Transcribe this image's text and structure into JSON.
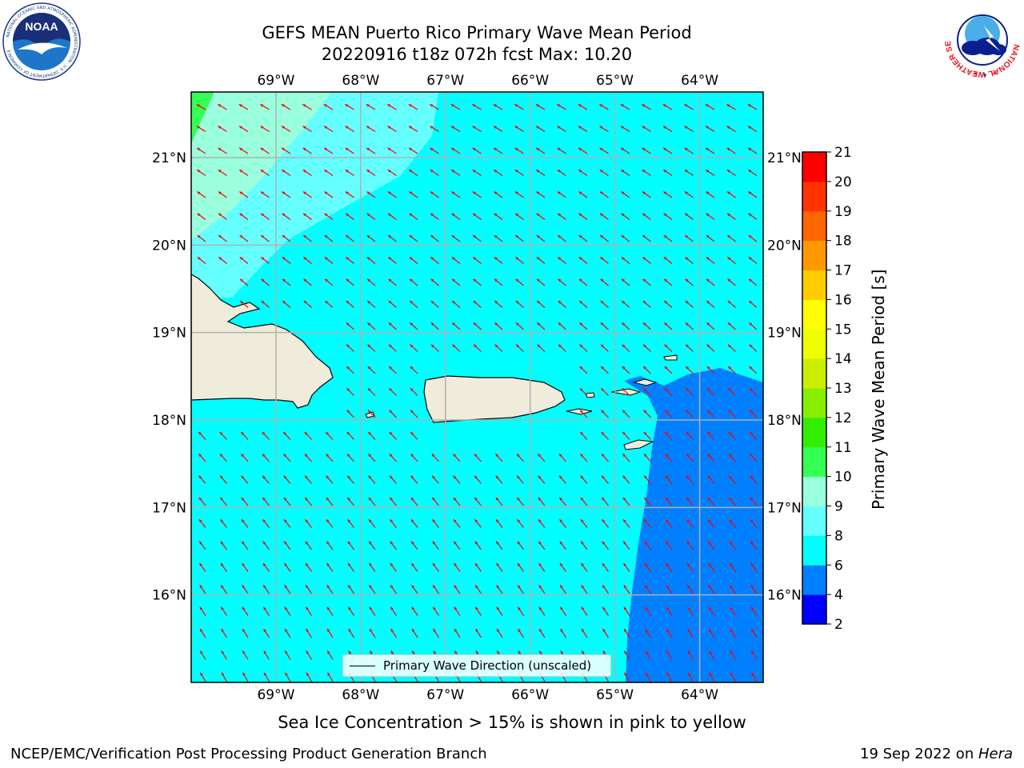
{
  "title_line1": "GEFS MEAN Puerto Rico Primary Wave Mean Period",
  "title_line2": "20220916 t18z 072h fcst   Max: 10.20",
  "left_logo": {
    "name": "NOAA",
    "ring_text": "NATIONAL OCEANIC AND ATMOSPHERIC ADMINISTRATION · U.S. DEPARTMENT OF COMMERCE"
  },
  "right_logo": {
    "ring_text": "NATIONAL WEATHER SERVICE"
  },
  "map": {
    "lon_range": [
      -70.0,
      -63.25
    ],
    "lat_range": [
      15.0,
      21.75
    ],
    "lon_ticks": [
      {
        "value": -69,
        "label": "69°W"
      },
      {
        "value": -68,
        "label": "68°W"
      },
      {
        "value": -67,
        "label": "67°W"
      },
      {
        "value": -66,
        "label": "66°W"
      },
      {
        "value": -65,
        "label": "65°W"
      },
      {
        "value": -64,
        "label": "64°W"
      }
    ],
    "lat_ticks": [
      {
        "value": 21,
        "label": "21°N"
      },
      {
        "value": 20,
        "label": "20°N"
      },
      {
        "value": 19,
        "label": "19°N"
      },
      {
        "value": 18,
        "label": "18°N"
      },
      {
        "value": 17,
        "label": "17°N"
      },
      {
        "value": 16,
        "label": "16°N"
      }
    ],
    "colors": {
      "ocean_main": "#00ffff",
      "ocean_8_9": "#66ffff",
      "ocean_9_10": "#99ffdd",
      "ocean_10_11": "#33ff55",
      "ocean_4_6": "#0080ff",
      "land": "#efecdc",
      "arrow": "#ff0000",
      "grid": "#b0b0b0"
    },
    "legend_label": "Primary Wave Direction (unscaled)"
  },
  "colorbar": {
    "label": "Primary Wave Mean Period [s]",
    "levels": [
      2,
      4,
      6,
      8,
      9,
      10,
      11,
      12,
      13,
      14,
      15,
      16,
      17,
      18,
      19,
      20,
      21
    ],
    "colors": [
      "#0000ff",
      "#0080ff",
      "#00ffff",
      "#66ffff",
      "#99ffdd",
      "#33ff55",
      "#33ee00",
      "#88ee00",
      "#ccee00",
      "#eeff00",
      "#ffff00",
      "#ffcc00",
      "#ff9900",
      "#ff6600",
      "#ff3300",
      "#ff0000"
    ]
  },
  "subtitle": "Sea Ice Concentration > 15% is shown in pink to yellow",
  "footer_left": "NCEP/EMC/Verification Post Processing Product Generation Branch",
  "footer_right_prefix": "19 Sep 2022 on ",
  "footer_right_host": "Hera"
}
